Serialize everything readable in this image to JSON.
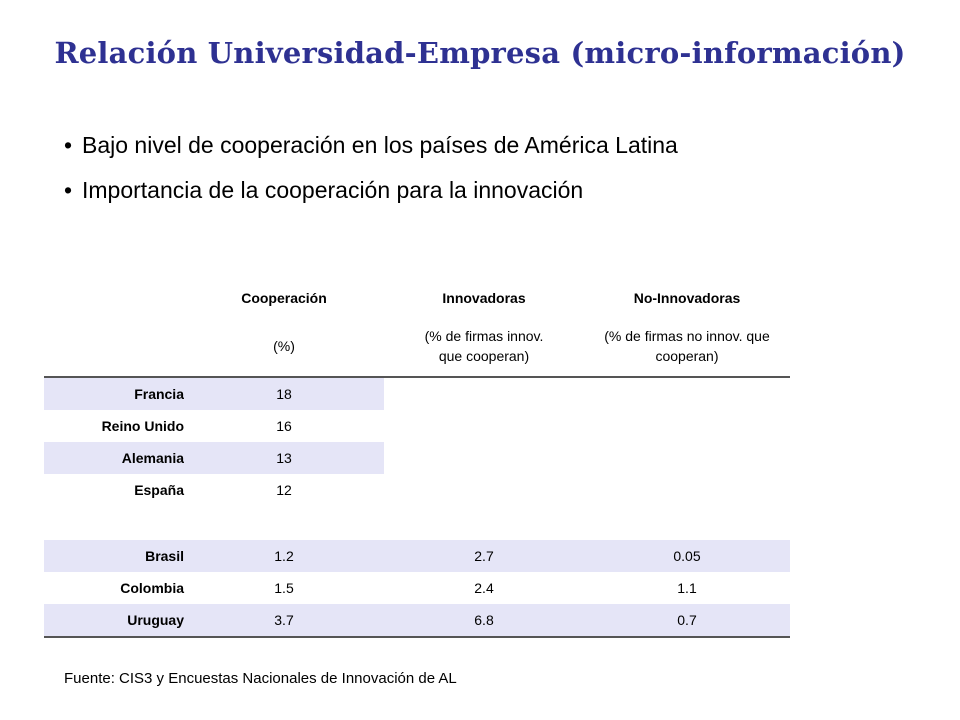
{
  "title": "Relación Universidad-Empresa (micro-información)",
  "bullets": [
    "Bajo nivel de cooperación en los países de América Latina",
    "Importancia de la cooperación para la innovación"
  ],
  "table": {
    "headers": [
      "Cooperación",
      "Innovadoras",
      "No-Innovadoras"
    ],
    "subheaders": [
      "(%)",
      "(% de firmas innov. que cooperan)",
      "(% de firmas no innov. que cooperan)"
    ],
    "europe": [
      {
        "country": "Francia",
        "coop": "18"
      },
      {
        "country": "Reino Unido",
        "coop": "16"
      },
      {
        "country": "Alemania",
        "coop": "13"
      },
      {
        "country": "España",
        "coop": "12"
      }
    ],
    "latam": [
      {
        "country": "Brasil",
        "coop": "1.2",
        "innov": "2.7",
        "noinnov": "0.05"
      },
      {
        "country": "Colombia",
        "coop": "1.5",
        "innov": "2.4",
        "noinnov": "1.1"
      },
      {
        "country": "Uruguay",
        "coop": "3.7",
        "innov": "6.8",
        "noinnov": "0.7"
      }
    ]
  },
  "source": "Fuente: CIS3 y Encuestas Nacionales de Innovación de AL",
  "colors": {
    "title": "#2e3192",
    "row_shade": "#e5e5f7"
  }
}
